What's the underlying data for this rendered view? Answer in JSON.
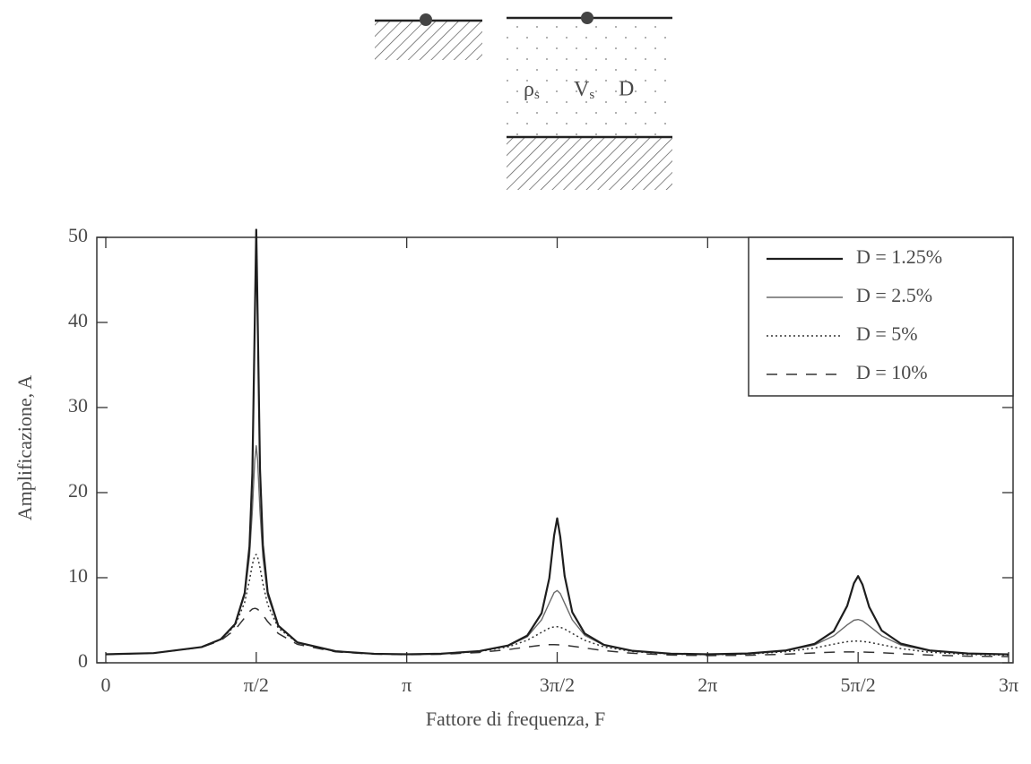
{
  "diagram": {
    "labels": [
      {
        "main": "ρ",
        "sub": "s"
      },
      {
        "main": "V",
        "sub": "s"
      },
      {
        "main": "D"
      }
    ]
  },
  "chart_data": {
    "type": "line",
    "xlabel": "Fattore di frequenza, F",
    "ylabel": "Amplificazione, A",
    "xlim": [
      0,
      9.4248
    ],
    "ylim": [
      0,
      50
    ],
    "xticks": [
      0,
      {
        "value": 1.5708,
        "label": "π/2"
      },
      {
        "value": 3.1416,
        "label": "π"
      },
      {
        "value": 4.7124,
        "label": "3π/2"
      },
      {
        "value": 6.2832,
        "label": "2π"
      },
      {
        "value": 7.854,
        "label": "5π/2"
      },
      {
        "value": 9.4248,
        "label": "3π"
      }
    ],
    "yticks": [
      0,
      10,
      20,
      30,
      40,
      50
    ],
    "legend": "upper right",
    "x": [
      0,
      0.5,
      1.0,
      1.2,
      1.35,
      1.45,
      1.5,
      1.53,
      1.555,
      1.5708,
      1.585,
      1.61,
      1.64,
      1.69,
      1.8,
      2.0,
      2.4,
      2.8,
      3.1416,
      3.5,
      3.9,
      4.2,
      4.4,
      4.55,
      4.63,
      4.68,
      4.7124,
      4.745,
      4.79,
      4.87,
      5.0,
      5.2,
      5.5,
      5.9,
      6.2832,
      6.7,
      7.1,
      7.4,
      7.6,
      7.74,
      7.81,
      7.854,
      7.9,
      7.97,
      8.1,
      8.3,
      8.6,
      9.0,
      9.4248
    ],
    "series": [
      {
        "name": "D = 1.25%",
        "color": "#1e1e1e",
        "linestyle": "solid",
        "values": [
          1,
          1.14,
          1.85,
          2.76,
          4.55,
          8.2,
          13.67,
          22.2,
          39.9,
          50.9,
          41.0,
          22.7,
          13.86,
          8.28,
          4.38,
          2.4,
          1.355,
          1.061,
          0.999,
          1.067,
          1.375,
          2.03,
          3.2,
          5.83,
          9.94,
          14.95,
          16.98,
          14.78,
          10.21,
          5.94,
          3.44,
          2.11,
          1.405,
          1.075,
          0.997,
          1.089,
          1.448,
          2.23,
          3.72,
          6.69,
          9.34,
          10.19,
          9.18,
          6.55,
          3.79,
          2.25,
          1.455,
          1.089,
          0.993
        ]
      },
      {
        "name": "D = 2.5%",
        "color": "#6a6a6a",
        "linestyle": "solid",
        "values": [
          1,
          1.14,
          1.85,
          2.75,
          4.51,
          7.95,
          12.49,
          17.89,
          23.8,
          25.5,
          23.8,
          17.8,
          12.43,
          7.92,
          4.32,
          2.39,
          1.352,
          1.058,
          0.997,
          1.063,
          1.365,
          1.99,
          3.06,
          5.06,
          7.04,
          8.24,
          8.49,
          8.13,
          7.01,
          5.04,
          3.23,
          2.06,
          1.385,
          1.065,
          0.988,
          1.076,
          1.414,
          2.1,
          3.17,
          4.45,
          5.0,
          5.09,
          4.93,
          4.34,
          3.16,
          2.09,
          1.405,
          1.065,
          0.973
        ]
      },
      {
        "name": "D = 5%",
        "color": "#333333",
        "linestyle": "dotted",
        "values": [
          1,
          1.14,
          1.84,
          2.72,
          4.36,
          7.11,
          9.7,
          11.54,
          12.6,
          12.73,
          12.42,
          11.17,
          9.32,
          6.85,
          4.09,
          2.34,
          1.339,
          1.05,
          0.988,
          1.05,
          1.331,
          1.87,
          2.65,
          3.58,
          4.07,
          4.23,
          4.24,
          4.18,
          3.97,
          3.45,
          2.64,
          1.87,
          1.316,
          1.027,
          0.954,
          1.027,
          1.297,
          1.74,
          2.19,
          2.48,
          2.55,
          2.55,
          2.52,
          2.41,
          2.12,
          1.67,
          1.245,
          0.984,
          0.905
        ]
      },
      {
        "name": "D = 10%",
        "color": "#333333",
        "linestyle": "dashed",
        "values": [
          1,
          1.14,
          1.82,
          2.62,
          3.89,
          5.3,
          6.03,
          6.32,
          6.4,
          6.37,
          6.28,
          6.03,
          5.62,
          4.84,
          3.45,
          2.17,
          1.29,
          1.017,
          0.954,
          1.0,
          1.214,
          1.55,
          1.86,
          2.07,
          2.13,
          2.13,
          2.12,
          2.1,
          2.06,
          1.95,
          1.74,
          1.43,
          1.115,
          0.91,
          0.847,
          0.882,
          1.014,
          1.162,
          1.249,
          1.278,
          1.278,
          1.273,
          1.264,
          1.242,
          1.182,
          1.069,
          0.913,
          0.781,
          0.728
        ]
      }
    ]
  }
}
